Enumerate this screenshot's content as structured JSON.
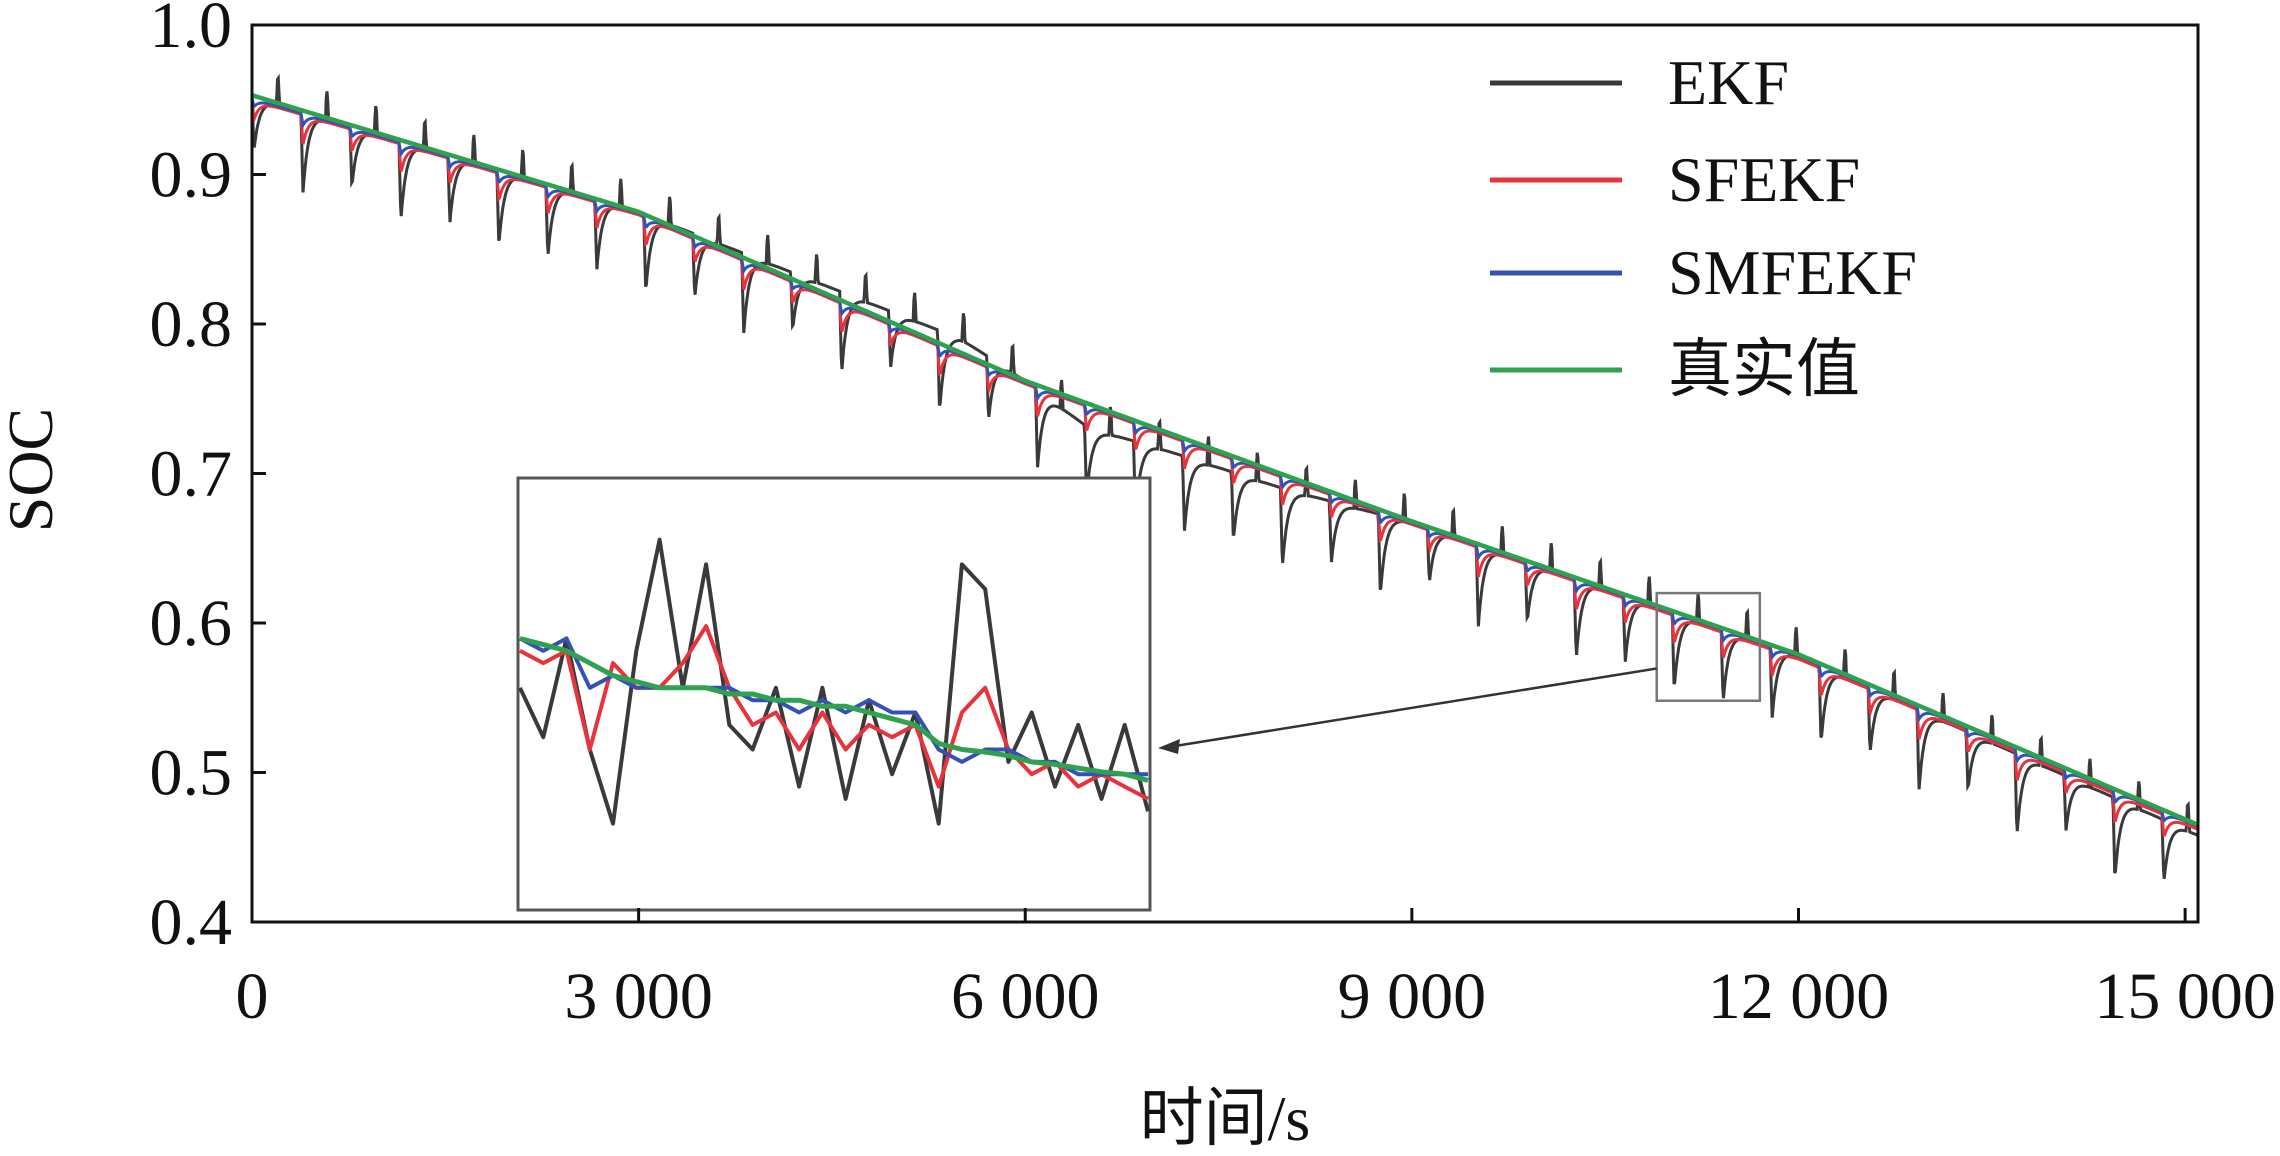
{
  "chart_data": {
    "type": "line",
    "xlabel": "时间/s",
    "ylabel": "SOC",
    "xlim": [
      0,
      15100
    ],
    "ylim": [
      0.4,
      1.0
    ],
    "xticks": [
      0,
      3000,
      6000,
      9000,
      12000,
      15000
    ],
    "xtick_labels": [
      "0",
      "3 000",
      "6 000",
      "9 000",
      "12 000",
      "15 000"
    ],
    "yticks": [
      0.4,
      0.5,
      0.6,
      0.7,
      0.8,
      0.9,
      1.0
    ],
    "ytick_labels": [
      "0.4",
      "0.5",
      "0.6",
      "0.7",
      "0.8",
      "0.9",
      "1.0"
    ],
    "grid": false,
    "legend_position": "top-right",
    "colors": {
      "EKF": "#3a3a3a",
      "SFEKF": "#e8333c",
      "SMFEKF": "#3452b4",
      "真实值": "#2fa24f"
    },
    "series": [
      {
        "name": "EKF",
        "pulse_period_s": 380,
        "dip_depth": 0.055,
        "x": [
          0,
          3000,
          5500,
          6000,
          6500,
          7000,
          8000,
          9000,
          12000,
          15100
        ],
        "values": [
          0.952,
          0.875,
          0.79,
          0.762,
          0.73,
          0.718,
          0.69,
          0.667,
          0.578,
          0.458
        ]
      },
      {
        "name": "SFEKF",
        "pulse_period_s": 380,
        "dip_depth": 0.02,
        "x": [
          0,
          3000,
          6000,
          9000,
          12000,
          15100
        ],
        "values": [
          0.95,
          0.873,
          0.76,
          0.666,
          0.576,
          0.462
        ]
      },
      {
        "name": "SMFEKF",
        "pulse_period_s": 380,
        "dip_depth": 0.008,
        "x": [
          0,
          3000,
          6000,
          9000,
          12000,
          15100
        ],
        "values": [
          0.951,
          0.874,
          0.761,
          0.667,
          0.578,
          0.464
        ]
      },
      {
        "name": "真实值",
        "x": [
          0,
          3000,
          6000,
          9000,
          12000,
          15100
        ],
        "values": [
          0.953,
          0.875,
          0.762,
          0.668,
          0.579,
          0.465
        ]
      }
    ],
    "inset": {
      "source_x_range": [
        10900,
        11700
      ],
      "source_y_range": [
        0.548,
        0.62
      ],
      "series": [
        {
          "name": "EKF",
          "values": [
            0.58,
            0.54,
            0.62,
            0.53,
            0.47,
            0.61,
            0.7,
            0.58,
            0.68,
            0.55,
            0.53,
            0.58,
            0.5,
            0.58,
            0.49,
            0.57,
            0.51,
            0.56,
            0.47,
            0.68,
            0.66,
            0.52,
            0.56,
            0.5,
            0.55,
            0.49,
            0.55,
            0.48
          ]
        },
        {
          "name": "SFEKF",
          "values": [
            0.61,
            0.6,
            0.61,
            0.53,
            0.6,
            0.58,
            0.58,
            0.6,
            0.63,
            0.58,
            0.55,
            0.56,
            0.53,
            0.56,
            0.53,
            0.55,
            0.54,
            0.55,
            0.5,
            0.56,
            0.58,
            0.53,
            0.51,
            0.52,
            0.5,
            0.51,
            0.5,
            0.49
          ]
        },
        {
          "name": "SMFEKF",
          "values": [
            0.62,
            0.61,
            0.62,
            0.58,
            0.59,
            0.58,
            0.58,
            0.58,
            0.58,
            0.58,
            0.57,
            0.57,
            0.56,
            0.57,
            0.56,
            0.57,
            0.56,
            0.56,
            0.53,
            0.52,
            0.53,
            0.53,
            0.52,
            0.52,
            0.51,
            0.51,
            0.51,
            0.51
          ]
        },
        {
          "name": "真实值",
          "values": [
            0.62,
            0.615,
            0.61,
            0.6,
            0.59,
            0.585,
            0.58,
            0.58,
            0.58,
            0.575,
            0.575,
            0.57,
            0.57,
            0.565,
            0.565,
            0.56,
            0.555,
            0.55,
            0.535,
            0.53,
            0.528,
            0.525,
            0.52,
            0.518,
            0.515,
            0.512,
            0.51,
            0.505
          ]
        }
      ]
    }
  }
}
